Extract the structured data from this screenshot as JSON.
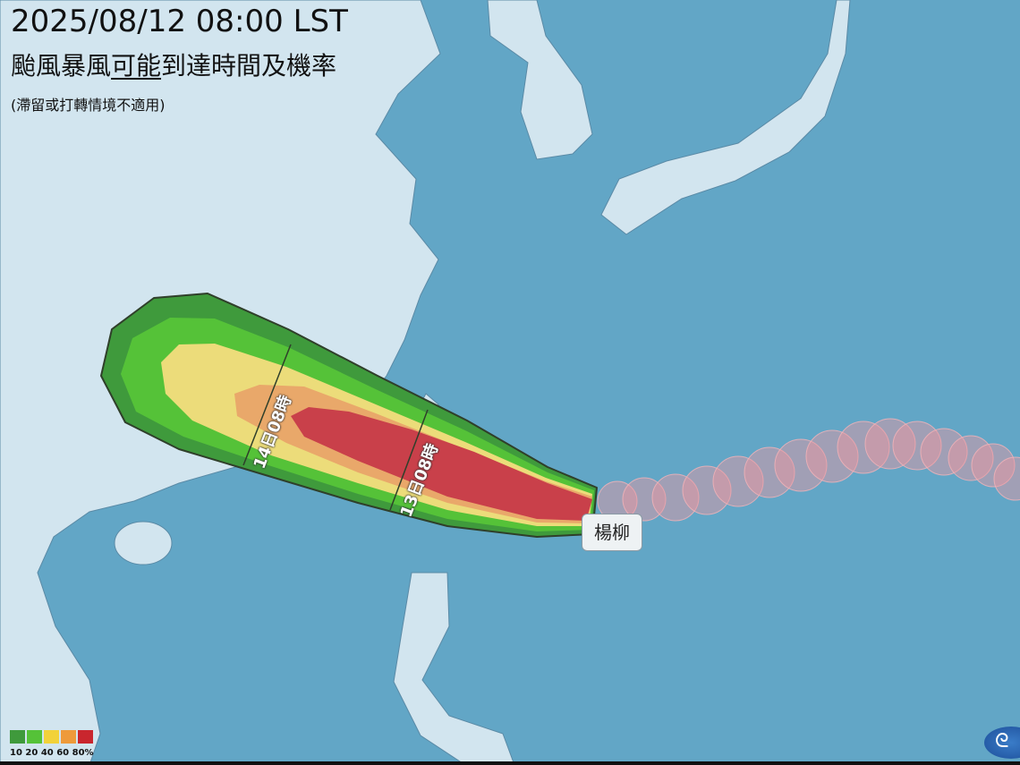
{
  "header": {
    "datetime": "2025/08/12 08:00 LST",
    "title_pre": "颱風暴風",
    "title_underlined": "可能",
    "title_post": "到達時間及機率",
    "note": "(滯留或打轉情境不適用)"
  },
  "storm": {
    "name": "楊柳"
  },
  "time_labels": [
    "13日08時",
    "14日08時"
  ],
  "legend": {
    "values": [
      "10",
      "20",
      "40",
      "60",
      "80"
    ],
    "unit": "%",
    "colors": [
      "#3f9a3c",
      "#55c238",
      "#f2d23a",
      "#ee9a3a",
      "#c9262e"
    ]
  },
  "colors": {
    "water": "#62a6c6",
    "land": "#d2e5ef",
    "swath_outline": "#2f3f2a"
  },
  "logo": {
    "icon": "cloud-emblem-icon"
  }
}
